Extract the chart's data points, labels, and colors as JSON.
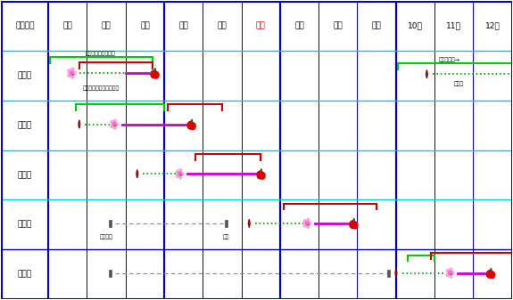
{
  "title": "",
  "months": [
    "栽培種類",
    "１月",
    "２月",
    "３月",
    "４月",
    "５月",
    "６月",
    "７月",
    "８月",
    "９月",
    "10月",
    "11月",
    "12月"
  ],
  "rows": [
    "超促成",
    "促　成",
    "露　地",
    "抑　制",
    "超抑制"
  ],
  "border_color": "#0000cc",
  "header_bg": "#ffffff",
  "row_bg": "#ffffff",
  "cyan_line": "#00cccc",
  "green_line": "#00cc00",
  "red_line": "#cc0000",
  "magenta_line": "#cc00cc",
  "green_dot": "#00aa00",
  "fig_width": 5.75,
  "fig_height": 3.37
}
